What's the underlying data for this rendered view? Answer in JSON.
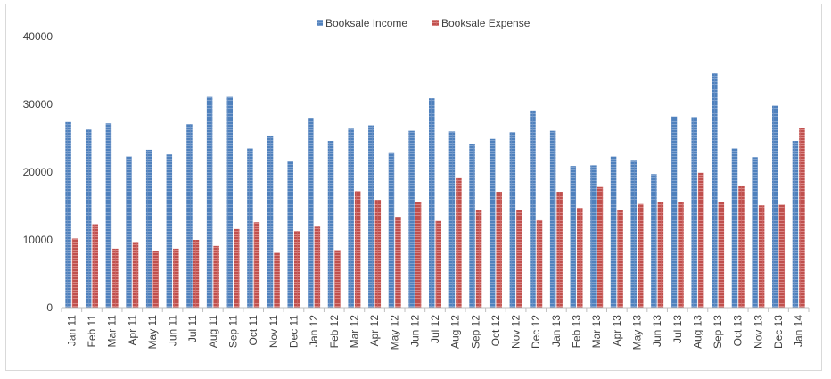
{
  "chart_data": {
    "type": "bar",
    "title": "",
    "xlabel": "",
    "ylabel": "",
    "ylim": [
      0,
      40000
    ],
    "yticks": [
      0,
      10000,
      20000,
      30000,
      40000
    ],
    "grid": false,
    "legend_position": "top-center",
    "categories": [
      "Jan 11",
      "Feb 11",
      "Mar 11",
      "Apr 11",
      "May 11",
      "Jun 11",
      "Jul 11",
      "Aug 11",
      "Sep 11",
      "Oct 11",
      "Nov 11",
      "Dec 11",
      "Jan 12",
      "Feb 12",
      "Mar 12",
      "Apr 12",
      "May 12",
      "Jun 12",
      "Jul 12",
      "Aug 12",
      "Sep 12",
      "Oct 12",
      "Nov 12",
      "Dec 12",
      "Jan 13",
      "Feb 13",
      "Mar 13",
      "Apr 13",
      "May 13",
      "Jun 13",
      "Jul 13",
      "Aug 13",
      "Sep 13",
      "Oct 13",
      "Nov 13",
      "Dec 13",
      "Jan 14"
    ],
    "series": [
      {
        "name": "Booksale Income",
        "color": "#4f81bd",
        "values": [
          27400,
          26300,
          27200,
          22300,
          23300,
          22600,
          27100,
          31100,
          31100,
          23500,
          25400,
          21700,
          28000,
          24600,
          26400,
          26900,
          22800,
          26100,
          30900,
          26000,
          24100,
          24900,
          25900,
          29100,
          26100,
          20900,
          21000,
          22300,
          21800,
          19700,
          28200,
          28100,
          34600,
          23500,
          22200,
          29800,
          24600
        ]
      },
      {
        "name": "Booksale Expense",
        "color": "#c0504d",
        "values": [
          10200,
          12300,
          8700,
          9700,
          8300,
          8700,
          10000,
          9100,
          11600,
          12600,
          8100,
          11300,
          12100,
          8500,
          17200,
          15900,
          13400,
          15600,
          12800,
          19100,
          14400,
          17100,
          14400,
          12900,
          17100,
          14700,
          17800,
          14400,
          15300,
          15600,
          15600,
          19900,
          15600,
          17900,
          15100,
          15200,
          26500
        ]
      }
    ]
  }
}
